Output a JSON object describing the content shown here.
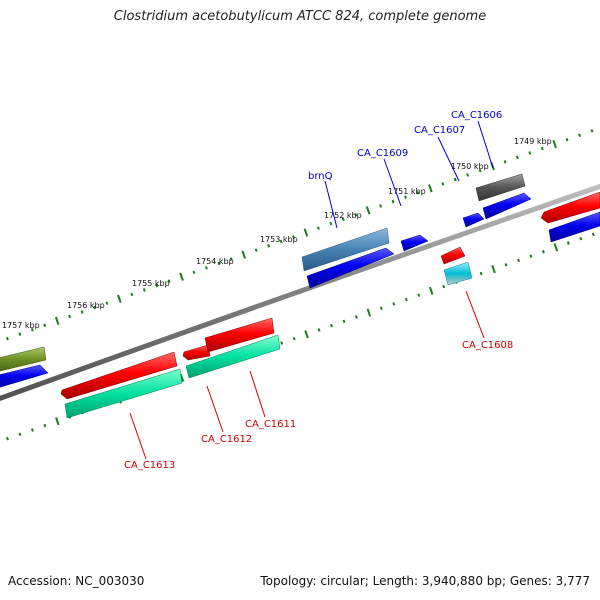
{
  "title": "Clostridium acetobutylicum ATCC 824, complete genome",
  "footer": {
    "accession": "Accession: NC_003030",
    "summary": "Topology: circular; Length: 3,940,880 bp; Genes: 3,777"
  },
  "ticks": {
    "k1749": "1749 kbp",
    "k1750": "1750 kbp",
    "k1751": "1751 kbp",
    "k1752": "1752 kbp",
    "k1753": "1753 kbp",
    "k1754": "1754 kbp",
    "k1755": "1755 kbp",
    "k1756": "1756 kbp",
    "k1757": "1757 kbp"
  },
  "genes": {
    "brnQ": "brnQ",
    "ca_c1609": "CA_C1609",
    "ca_c1607": "CA_C1607",
    "ca_c1606": "CA_C1606",
    "ca_c1608": "CA_C1608",
    "ca_c1613": "CA_C1613",
    "ca_c1612": "CA_C1612",
    "ca_c1611": "CA_C1611"
  },
  "colors": {
    "backbone": "#808080",
    "tick": "#1e7a1e",
    "forward_label": "#0000cc",
    "reverse_label": "#cc0000",
    "red": "#ff0000",
    "blue": "#0000ee",
    "teal": "#00e0a0",
    "olive": "#6b8e23",
    "gray": "#555555",
    "steel": "#4682b4",
    "cyan": "#00bcd4"
  }
}
